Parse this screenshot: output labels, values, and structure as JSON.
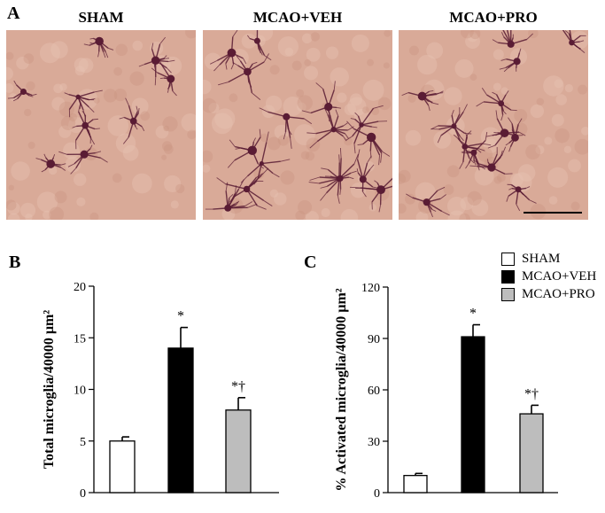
{
  "panel_a": {
    "letter": "A",
    "images": [
      {
        "label": "SHAM"
      },
      {
        "label": "MCAO+VEH"
      },
      {
        "label": "MCAO+PRO"
      }
    ]
  },
  "legend": [
    "SHAM",
    "MCAO+VEH",
    "MCAO+PRO"
  ],
  "colors": {
    "SHAM": "#ffffff",
    "MCAO+VEH": "#000000",
    "MCAO+PRO": "#bdbdbd",
    "tissue": "#d9aa98",
    "cell": "#5a1c34"
  },
  "chart_data": [
    {
      "panel": "B",
      "type": "bar",
      "categories": [
        "SHAM",
        "MCAO+VEH",
        "MCAO+PRO"
      ],
      "values": [
        5,
        14,
        8
      ],
      "errors": [
        0.4,
        2.0,
        1.2
      ],
      "annotations": [
        "",
        "*",
        "*†"
      ],
      "ylabel": "Total microglia/40000 µm²",
      "ylim": [
        0,
        20
      ],
      "yticks": [
        0,
        5,
        10,
        15,
        20
      ]
    },
    {
      "panel": "C",
      "type": "bar",
      "categories": [
        "SHAM",
        "MCAO+VEH",
        "MCAO+PRO"
      ],
      "values": [
        10,
        91,
        46
      ],
      "errors": [
        1.2,
        7,
        5
      ],
      "annotations": [
        "",
        "*",
        "*†"
      ],
      "ylabel": "% Activated microglia/40000 µm²",
      "ylim": [
        0,
        120
      ],
      "yticks": [
        0,
        30,
        60,
        90,
        120
      ]
    }
  ]
}
